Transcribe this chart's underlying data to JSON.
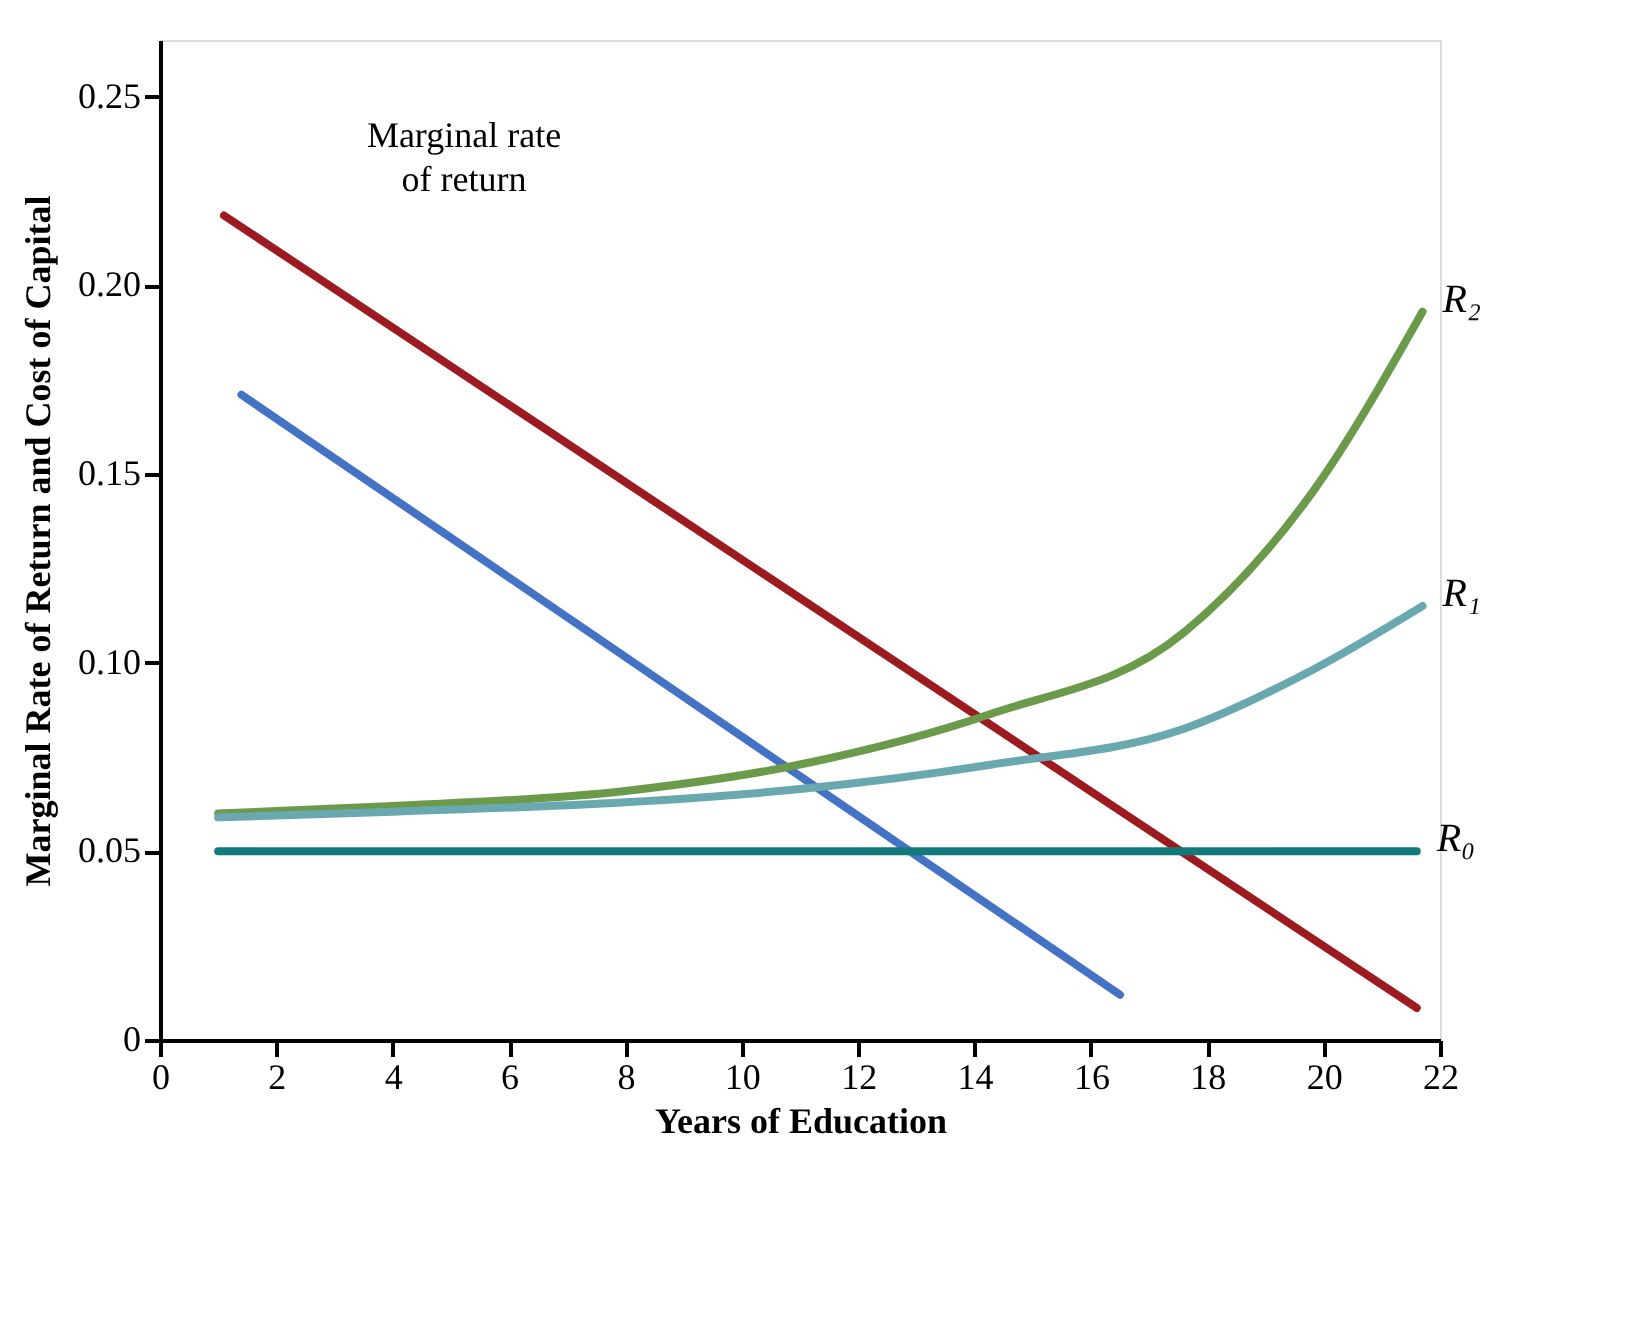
{
  "chart_data": {
    "type": "line",
    "xlabel": "Years of Education",
    "ylabel": "Marginal Rate of Return and Cost of Capital",
    "xlim": [
      0,
      22
    ],
    "xticks": [
      0,
      2,
      4,
      6,
      8,
      10,
      12,
      14,
      16,
      18,
      20,
      22
    ],
    "ylim": [
      0,
      0.265
    ],
    "yticks": [
      0,
      0.05,
      {
        "value": 0.1,
        "label": "0.10"
      },
      0.15,
      {
        "value": 0.2,
        "label": "0.20"
      },
      0.25
    ],
    "grid": false,
    "marker": "none",
    "line_style": "solid",
    "series": [
      {
        "name": "Marginal rate of return",
        "color": "#9b1b20",
        "x": [
          1.1,
          21.6
        ],
        "values": [
          0.2185,
          0.0085
        ]
      },
      {
        "color": "#4472c4",
        "x": [
          1.4,
          16.5
        ],
        "values": [
          0.171,
          0.012
        ]
      },
      {
        "name": "R₂",
        "color": "#6a9a4a",
        "x": [
          1,
          4,
          8,
          11,
          14.3,
          17.6,
          19.8,
          21.7
        ],
        "values": [
          0.06,
          0.062,
          0.066,
          0.073,
          0.0865,
          0.108,
          0.145,
          0.193
        ]
      },
      {
        "name": "R₁",
        "color": "#6aa8b0",
        "x": [
          1,
          4,
          8,
          11,
          14.3,
          17.6,
          19.8,
          21.7
        ],
        "values": [
          0.059,
          0.0605,
          0.063,
          0.0665,
          0.073,
          0.0825,
          0.098,
          0.115
        ]
      },
      {
        "name": "R₀",
        "color": "#127a7a",
        "x": [
          1,
          21.6
        ],
        "values": [
          0.05,
          0.05
        ]
      }
    ]
  }
}
